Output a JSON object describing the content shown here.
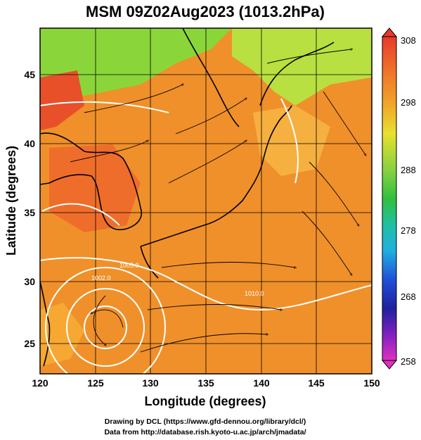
{
  "title": "MSM 09Z02Aug2023 (1013.2hPa)",
  "xlabel": "Longitude (degrees)",
  "ylabel": "Latitude  (degrees)",
  "xticks": [
    "120",
    "125",
    "130",
    "135",
    "140",
    "145",
    "150"
  ],
  "yticks": [
    "25",
    "30",
    "35",
    "40",
    "45"
  ],
  "colorbar_ticks": [
    "308",
    "298",
    "288",
    "278",
    "268",
    "258"
  ],
  "contour_labels": [
    "1005.0",
    "1002.0",
    "1010.0"
  ],
  "credit_line1": "Drawing by DCL (https://www.gfd-dennou.org/library/dcl/)",
  "credit_line2": "Data from http://database.rish.kyoto-u.ac.jp/arch/jmadata/",
  "colors": {
    "warm_fill": "#f08a2a",
    "hot": "#e8442a",
    "mild": "#8ad63a",
    "contour": "#ffffff",
    "coast": "#000000"
  },
  "chart_data": {
    "type": "heatmap",
    "variable": "temperature with wind streamlines and pressure contours",
    "xlim": [
      120,
      150
    ],
    "ylim": [
      22.5,
      47.5
    ],
    "color_range": [
      258,
      308
    ],
    "typhoon_center": [
      126,
      26
    ]
  }
}
